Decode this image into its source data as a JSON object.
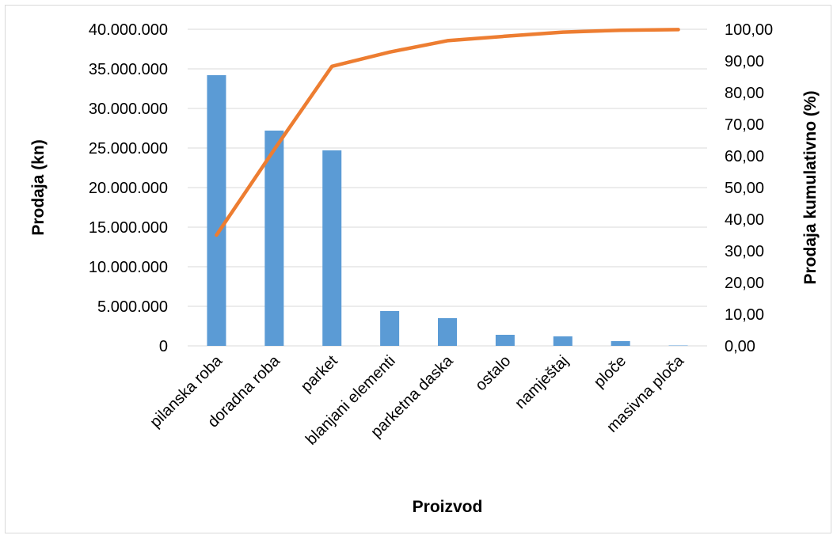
{
  "chart_data": {
    "type": "bar",
    "categories": [
      "pilanska roba",
      "doradna roba",
      "parket",
      "blanjani elementi",
      "parketna daska",
      "ostalo",
      "namještaj",
      "ploče",
      "masivna ploča"
    ],
    "series": [
      {
        "type": "bar",
        "axis": "left",
        "color": "#5b9bd5",
        "values": [
          34200000,
          27200000,
          24700000,
          4400000,
          3500000,
          1400000,
          1200000,
          600000,
          50000
        ]
      },
      {
        "type": "line",
        "axis": "right",
        "color": "#ed7d31",
        "values": [
          35.0,
          62.0,
          88.3,
          92.8,
          96.4,
          97.8,
          99.1,
          99.7,
          99.9
        ]
      }
    ],
    "xlabel": "Proizvod",
    "ylabel": "Prodaja (kn)",
    "y2label": "Prodaja kumulativno (%)",
    "ylim": [
      0,
      40000000
    ],
    "y2lim": [
      0,
      100
    ],
    "yticks": [
      "0",
      "5.000.000",
      "10.000.000",
      "15.000.000",
      "20.000.000",
      "25.000.000",
      "30.000.000",
      "35.000.000",
      "40.000.000"
    ],
    "y2ticks": [
      "0,00",
      "10,00",
      "20,00",
      "30,00",
      "40,00",
      "50,00",
      "60,00",
      "70,00",
      "80,00",
      "90,00",
      "100,00"
    ],
    "grid": true,
    "legend": "none"
  }
}
